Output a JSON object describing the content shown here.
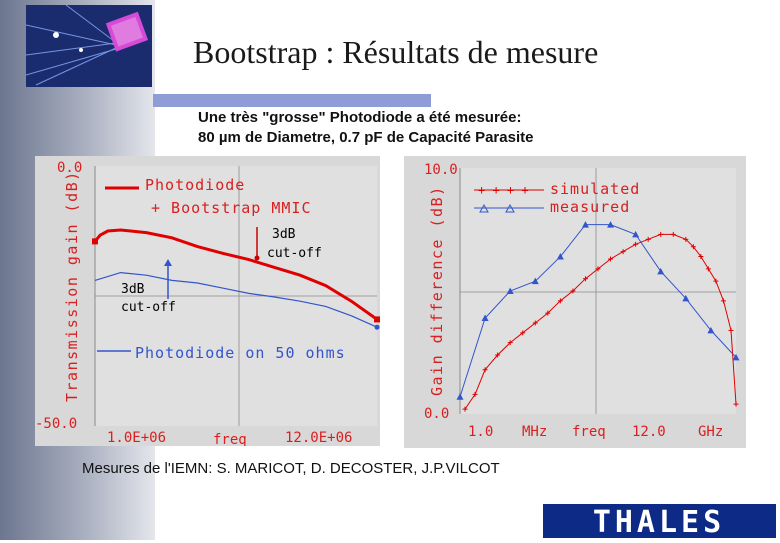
{
  "slide": {
    "title": "Bootstrap :  Résultats de mesure",
    "subtitle_line1": "Une très \"grosse\" Photodiode a été mesurée:",
    "subtitle_line2": "80 µm de Diametre, 0.7 pF de Capacité Parasite",
    "credit": "Mesures de l'IEMN: S. MARICOT, D. DECOSTER, J.P.VILCOT",
    "brand": "THALES",
    "colors": {
      "accent_bar": "#8f9dd6",
      "brand_bg": "#0c2a86",
      "red": "#e00000",
      "blue": "#3355cc"
    }
  },
  "chart_data": [
    {
      "type": "line",
      "ylabel": "Transmission gain (dB)",
      "y_top_label": "0.0",
      "y_bottom_label": "-50.0",
      "x_left_label": "1.0E+06",
      "x_mid_label": "freq",
      "x_right_label": "12.0E+06",
      "ylim": [
        -50,
        0
      ],
      "xlim": [
        1.0,
        12.0
      ],
      "legend_line1": "Photodiode",
      "legend_line2": "+ Bootstrap MMIC",
      "bottom_legend": "Photodiode on 50 ohms",
      "annotations": [
        {
          "text_line1": "3dB",
          "text_line2": "cut-off",
          "series": "red"
        },
        {
          "text_line1": "3dB",
          "text_line2": "cut-off",
          "series": "blue"
        }
      ],
      "series": [
        {
          "color": "#e00000",
          "x": [
            1.0,
            1.2,
            1.5,
            2.0,
            3.0,
            4.0,
            5.0,
            6.0,
            7.0,
            8.0,
            9.0,
            10.0,
            11.0,
            12.0
          ],
          "y": [
            -14.5,
            -13.3,
            -12.5,
            -12.3,
            -12.8,
            -13.8,
            -15.5,
            -16.8,
            -18.0,
            -19.5,
            -21.0,
            -23.0,
            -26.0,
            -29.5
          ]
        },
        {
          "color": "#3355cc",
          "x": [
            1.0,
            2.0,
            3.0,
            4.0,
            5.0,
            6.0,
            7.0,
            8.0,
            9.0,
            10.0,
            11.0,
            12.0
          ],
          "y": [
            -22.0,
            -20.5,
            -21.0,
            -22.0,
            -22.5,
            -23.5,
            -24.5,
            -25.2,
            -26.0,
            -27.0,
            -28.8,
            -31.0
          ]
        }
      ]
    },
    {
      "type": "line",
      "ylabel": "Gain difference (dB)",
      "y_top_label": "10.0",
      "y_bottom_label": "0.0",
      "x_left_label": "1.0",
      "x_mid1_label": "MHz",
      "x_mid2_label": "freq",
      "x_mid3_label": "12.0",
      "x_right_label": "GHz",
      "ylim": [
        0,
        10
      ],
      "xlim": [
        1.0,
        12.0
      ],
      "legend": [
        "simulated",
        "measured"
      ],
      "series": [
        {
          "name": "simulated",
          "color": "#e00000",
          "x": [
            1.2,
            1.6,
            2.0,
            2.5,
            3.0,
            3.5,
            4.0,
            4.5,
            5.0,
            5.5,
            6.0,
            6.5,
            7.0,
            7.5,
            8.0,
            8.5,
            9.0,
            9.5,
            10.0,
            10.3,
            10.6,
            10.9,
            11.2,
            11.5,
            11.8,
            12.0
          ],
          "y": [
            0.2,
            0.8,
            1.8,
            2.4,
            2.9,
            3.3,
            3.7,
            4.1,
            4.6,
            5.0,
            5.5,
            5.9,
            6.3,
            6.6,
            6.9,
            7.1,
            7.3,
            7.3,
            7.1,
            6.8,
            6.4,
            5.9,
            5.4,
            4.6,
            3.4,
            0.4
          ]
        },
        {
          "name": "measured",
          "color": "#3355cc",
          "x": [
            1.0,
            2.0,
            3.0,
            4.0,
            5.0,
            6.0,
            7.0,
            8.0,
            9.0,
            10.0,
            11.0,
            12.0
          ],
          "y": [
            0.7,
            3.9,
            5.0,
            5.4,
            6.4,
            7.7,
            7.7,
            7.3,
            5.8,
            4.7,
            3.4,
            2.3
          ]
        }
      ]
    }
  ]
}
